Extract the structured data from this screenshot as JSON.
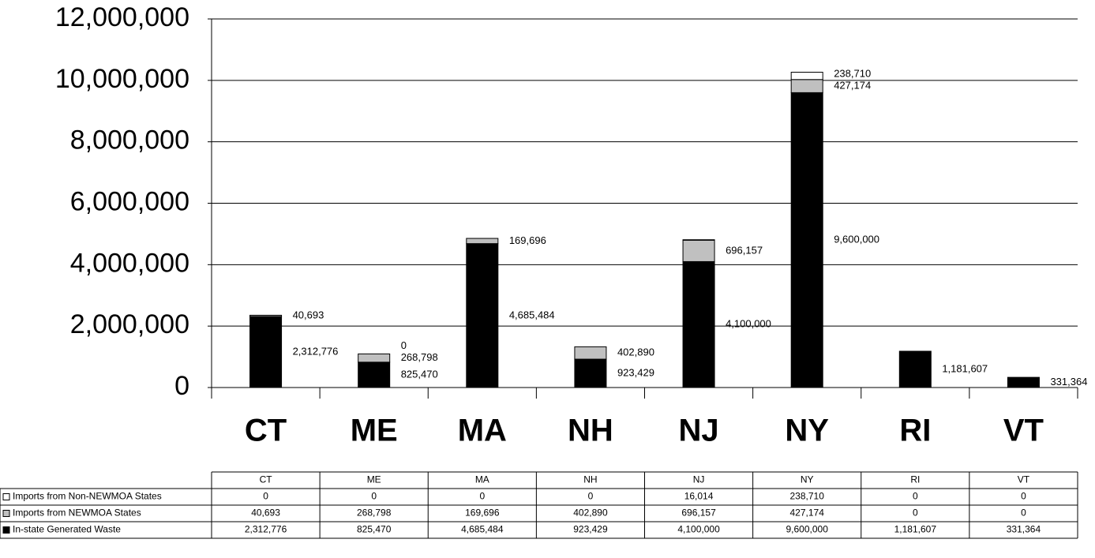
{
  "chart_data": {
    "type": "stacked_bar",
    "categories": [
      "CT",
      "ME",
      "MA",
      "NH",
      "NJ",
      "NY",
      "RI",
      "VT"
    ],
    "series": [
      {
        "name": "In-state Generated Waste",
        "color": "#000000",
        "values": [
          2312776,
          825470,
          4685484,
          923429,
          4100000,
          9600000,
          1181607,
          331364
        ],
        "value_labels": [
          "2,312,776",
          "825,470",
          "4,685,484",
          "923,429",
          "4,100,000",
          "9,600,000",
          "1,181,607",
          "331,364"
        ]
      },
      {
        "name": "Imports from NEWMOA States",
        "color": "#c0c0c0",
        "values": [
          40693,
          268798,
          169696,
          402890,
          696157,
          427174,
          0,
          0
        ],
        "value_labels": [
          "40,693",
          "268,798",
          "169,696",
          "402,890",
          "696,157",
          "427,174",
          null,
          null
        ]
      },
      {
        "name": "Imports from Non-NEWMOA States",
        "color": "#ffffff",
        "values": [
          0,
          0,
          0,
          0,
          16014,
          238710,
          0,
          0
        ],
        "value_labels": [
          null,
          "0",
          null,
          null,
          null,
          "238,710",
          null,
          null
        ]
      }
    ],
    "table_cells": [
      [
        "2,312,776",
        "825,470",
        "4,685,484",
        "923,429",
        "4,100,000",
        "9,600,000",
        "1,181,607",
        "331,364"
      ],
      [
        "40,693",
        "268,798",
        "169,696",
        "402,890",
        "696,157",
        "427,174",
        "0",
        "0"
      ],
      [
        "0",
        "0",
        "0",
        "0",
        "16,014",
        "238,710",
        "0",
        "0"
      ]
    ],
    "ylim": [
      0,
      12000000
    ],
    "yticks": [
      0,
      {
        "value": 2000000,
        "label": "2,000,000"
      },
      {
        "value": 4000000,
        "label": "4,000,000"
      },
      {
        "value": 6000000,
        "label": "6,000,000"
      },
      {
        "value": 8000000,
        "label": "8,000,000"
      },
      {
        "value": 10000000,
        "label": "10,000,000"
      },
      {
        "value": 12000000,
        "label": "12,000,000"
      }
    ],
    "grid": true
  }
}
